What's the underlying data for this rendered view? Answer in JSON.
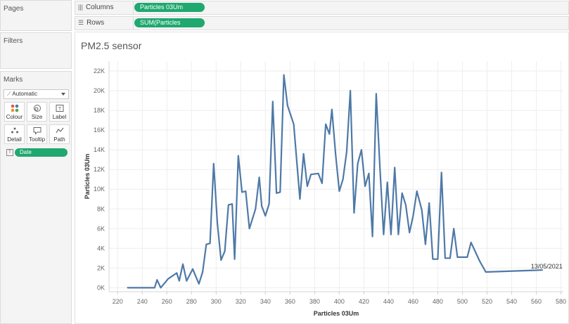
{
  "left_panel": {
    "pages_title": "Pages",
    "filters_title": "Filters",
    "marks_title": "Marks",
    "mark_type": "Automatic",
    "mark_buttons": [
      {
        "label": "Colour",
        "icon": "colour-icon"
      },
      {
        "label": "Size",
        "icon": "size-icon"
      },
      {
        "label": "Label",
        "icon": "label-icon"
      },
      {
        "label": "Detail",
        "icon": "detail-icon"
      },
      {
        "label": "Tooltip",
        "icon": "tooltip-icon"
      },
      {
        "label": "Path",
        "icon": "path-icon"
      }
    ],
    "date_pill": "Date"
  },
  "shelves": {
    "columns_label": "Columns",
    "columns_pill": "Particles 03Um",
    "rows_label": "Rows",
    "rows_pill": "SUM(Particles 03Um)"
  },
  "viz": {
    "title": "PM2.5 sensor",
    "pill_color": "#1fa86f",
    "line_color": "#4e79a7"
  },
  "chart_data": {
    "type": "line",
    "title": "PM2.5 sensor",
    "xlabel": "Particles 03Um",
    "ylabel": "Particles 03Um",
    "xlim": [
      213,
      582
    ],
    "ylim": [
      -400,
      23000
    ],
    "x_ticks": [
      220,
      240,
      260,
      280,
      300,
      320,
      340,
      360,
      380,
      400,
      420,
      440,
      460,
      480,
      500,
      520,
      540,
      560,
      580
    ],
    "y_ticks": [
      0,
      2000,
      4000,
      6000,
      8000,
      10000,
      12000,
      14000,
      16000,
      18000,
      20000,
      22000
    ],
    "y_tick_labels": [
      "0K",
      "2K",
      "4K",
      "6K",
      "8K",
      "10K",
      "12K",
      "14K",
      "16K",
      "18K",
      "20K",
      "22K"
    ],
    "grid": true,
    "annotation": {
      "text": "13/05/2021",
      "x": 565,
      "y": 1600
    },
    "series": [
      {
        "values": [
          [
            228,
            0
          ],
          [
            250,
            0
          ],
          [
            252,
            800
          ],
          [
            255,
            0
          ],
          [
            261,
            900
          ],
          [
            268,
            1500
          ],
          [
            270,
            700
          ],
          [
            273,
            2400
          ],
          [
            276,
            700
          ],
          [
            281,
            1900
          ],
          [
            286,
            400
          ],
          [
            289,
            1600
          ],
          [
            292,
            4400
          ],
          [
            295,
            4500
          ],
          [
            298,
            12600
          ],
          [
            301,
            6500
          ],
          [
            304,
            2800
          ],
          [
            307,
            3700
          ],
          [
            310,
            8400
          ],
          [
            313,
            8500
          ],
          [
            315,
            2900
          ],
          [
            318,
            13400
          ],
          [
            321,
            9700
          ],
          [
            324,
            9800
          ],
          [
            327,
            6000
          ],
          [
            332,
            8000
          ],
          [
            335,
            11200
          ],
          [
            337,
            8300
          ],
          [
            340,
            7300
          ],
          [
            343,
            8500
          ],
          [
            346,
            18900
          ],
          [
            349,
            9600
          ],
          [
            352,
            9700
          ],
          [
            355,
            21600
          ],
          [
            358,
            18500
          ],
          [
            363,
            16600
          ],
          [
            368,
            9000
          ],
          [
            371,
            13600
          ],
          [
            374,
            10300
          ],
          [
            377,
            11500
          ],
          [
            383,
            11600
          ],
          [
            386,
            10600
          ],
          [
            389,
            16600
          ],
          [
            392,
            15600
          ],
          [
            394,
            18100
          ],
          [
            397,
            13600
          ],
          [
            400,
            9800
          ],
          [
            403,
            11000
          ],
          [
            406,
            13800
          ],
          [
            409,
            20000
          ],
          [
            412,
            7600
          ],
          [
            415,
            12600
          ],
          [
            418,
            14000
          ],
          [
            421,
            10300
          ],
          [
            424,
            11600
          ],
          [
            427,
            5200
          ],
          [
            430,
            19700
          ],
          [
            433,
            12300
          ],
          [
            436,
            5400
          ],
          [
            439,
            10700
          ],
          [
            442,
            5400
          ],
          [
            445,
            12200
          ],
          [
            448,
            5400
          ],
          [
            451,
            9600
          ],
          [
            454,
            8400
          ],
          [
            457,
            5600
          ],
          [
            460,
            7300
          ],
          [
            463,
            9800
          ],
          [
            467,
            7900
          ],
          [
            470,
            4400
          ],
          [
            473,
            8600
          ],
          [
            476,
            2900
          ],
          [
            480,
            2900
          ],
          [
            483,
            11700
          ],
          [
            486,
            3000
          ],
          [
            490,
            3000
          ],
          [
            493,
            6000
          ],
          [
            496,
            3100
          ],
          [
            504,
            3100
          ],
          [
            507,
            4600
          ],
          [
            514,
            2700
          ],
          [
            519,
            1600
          ],
          [
            565,
            1800
          ]
        ]
      }
    ]
  }
}
